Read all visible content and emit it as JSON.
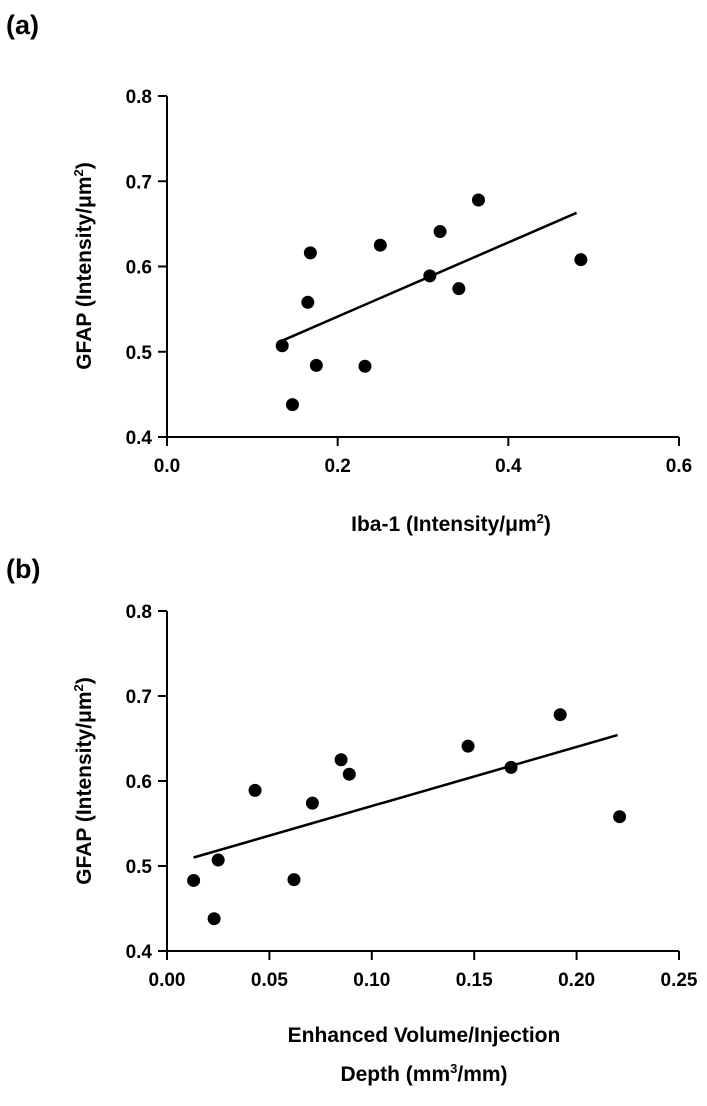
{
  "chart_data": [
    {
      "type": "scatter",
      "panel_label": "(a)",
      "title": "",
      "xlabel_text": "Iba-1 (Intensity/μm",
      "xlabel_sup": "2",
      "xlabel_close": ")",
      "ylabel_text": "GFAP (Intensity/μm",
      "ylabel_sup": "2",
      "ylabel_close": ")",
      "xlim": [
        0.0,
        0.6
      ],
      "ylim": [
        0.4,
        0.8
      ],
      "xticks": [
        "0.0",
        "0.2",
        "0.4",
        "0.6"
      ],
      "yticks": [
        "0.4",
        "0.5",
        "0.6",
        "0.7",
        "0.8"
      ],
      "grid": false,
      "points": [
        {
          "x": 0.135,
          "y": 0.507
        },
        {
          "x": 0.147,
          "y": 0.438
        },
        {
          "x": 0.165,
          "y": 0.558
        },
        {
          "x": 0.168,
          "y": 0.616
        },
        {
          "x": 0.175,
          "y": 0.484
        },
        {
          "x": 0.232,
          "y": 0.483
        },
        {
          "x": 0.25,
          "y": 0.625
        },
        {
          "x": 0.308,
          "y": 0.589
        },
        {
          "x": 0.32,
          "y": 0.641
        },
        {
          "x": 0.342,
          "y": 0.574
        },
        {
          "x": 0.365,
          "y": 0.678
        },
        {
          "x": 0.485,
          "y": 0.608
        }
      ],
      "fit_line": [
        {
          "x": 0.135,
          "y": 0.513
        },
        {
          "x": 0.48,
          "y": 0.663
        }
      ]
    },
    {
      "type": "scatter",
      "panel_label": "(b)",
      "title": "",
      "xlabel_line1": "Enhanced Volume/Injection",
      "xlabel_line2_text": "Depth (mm",
      "xlabel_line2_sup": "3",
      "xlabel_line2_close": "/mm)",
      "ylabel_text": "GFAP (Intensity/μm",
      "ylabel_sup": "2",
      "ylabel_close": ")",
      "xlim": [
        0.0,
        0.25
      ],
      "ylim": [
        0.4,
        0.8
      ],
      "xticks": [
        "0.00",
        "0.05",
        "0.10",
        "0.15",
        "0.20",
        "0.25"
      ],
      "yticks": [
        "0.4",
        "0.5",
        "0.6",
        "0.7",
        "0.8"
      ],
      "grid": false,
      "points": [
        {
          "x": 0.013,
          "y": 0.483
        },
        {
          "x": 0.023,
          "y": 0.438
        },
        {
          "x": 0.025,
          "y": 0.507
        },
        {
          "x": 0.043,
          "y": 0.589
        },
        {
          "x": 0.062,
          "y": 0.484
        },
        {
          "x": 0.071,
          "y": 0.574
        },
        {
          "x": 0.085,
          "y": 0.625
        },
        {
          "x": 0.089,
          "y": 0.608
        },
        {
          "x": 0.147,
          "y": 0.641
        },
        {
          "x": 0.168,
          "y": 0.616
        },
        {
          "x": 0.192,
          "y": 0.678
        },
        {
          "x": 0.221,
          "y": 0.558
        }
      ],
      "fit_line": [
        {
          "x": 0.013,
          "y": 0.51
        },
        {
          "x": 0.22,
          "y": 0.654
        }
      ]
    }
  ]
}
